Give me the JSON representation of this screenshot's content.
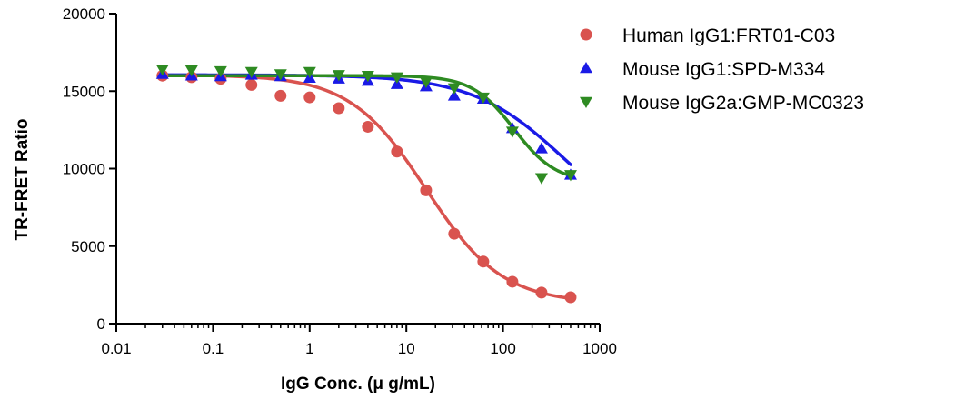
{
  "chart_data": {
    "type": "scatter",
    "xlabel": "IgG Conc. (μ g/mL)",
    "ylabel": "TR-FRET Ratio",
    "xscale": "log",
    "xlim": [
      0.01,
      1000
    ],
    "ylim": [
      0,
      20000
    ],
    "x_ticks": [
      0.01,
      0.1,
      1,
      10,
      100,
      1000
    ],
    "x_tick_labels": [
      "0.01",
      "0.1",
      "1",
      "10",
      "100",
      "1000"
    ],
    "y_ticks": [
      0,
      5000,
      10000,
      15000,
      20000
    ],
    "y_tick_labels": [
      "0",
      "5000",
      "10000",
      "15000",
      "20000"
    ],
    "grid": false,
    "legend_position": "top-right",
    "series": [
      {
        "name": "Human IgG1:FRT01-C03",
        "marker": "circle",
        "color": "#D9534F",
        "x": [
          0.03,
          0.06,
          0.12,
          0.25,
          0.5,
          1,
          2,
          4,
          8,
          16,
          31.25,
          62.5,
          125,
          250,
          500
        ],
        "y": [
          16000,
          15900,
          15800,
          15400,
          14700,
          14600,
          13900,
          12700,
          11100,
          8600,
          5800,
          4000,
          2700,
          2000,
          1700
        ],
        "fit": {
          "top": 16050,
          "bottom": 1300,
          "ec50": 16,
          "hill": 1.1
        }
      },
      {
        "name": "Mouse IgG1:SPD-M334",
        "marker": "triangle-up",
        "color": "#1A1AE6",
        "x": [
          0.03,
          0.06,
          0.12,
          0.25,
          0.5,
          1,
          2,
          4,
          8,
          16,
          31.25,
          62.5,
          125,
          250,
          500
        ],
        "y": [
          16100,
          16000,
          15950,
          16050,
          15950,
          15850,
          15800,
          15650,
          15450,
          15300,
          14700,
          14500,
          12600,
          11300,
          9600
        ],
        "fit": {
          "top": 16050,
          "bottom": 5000,
          "ec50": 450,
          "hill": 0.9
        }
      },
      {
        "name": "Mouse IgG2a:GMP-MC0323",
        "marker": "triangle-down",
        "color": "#2E8B22",
        "x": [
          0.03,
          0.06,
          0.12,
          0.25,
          0.5,
          1,
          2,
          4,
          8,
          16,
          31.25,
          62.5,
          125,
          250,
          500
        ],
        "y": [
          16400,
          16350,
          16300,
          16250,
          16100,
          16250,
          16050,
          16000,
          15900,
          15600,
          15200,
          14600,
          12400,
          9400,
          9600
        ],
        "fit": {
          "top": 16000,
          "bottom": 9100,
          "ec50": 130,
          "hill": 2.0
        }
      }
    ]
  }
}
